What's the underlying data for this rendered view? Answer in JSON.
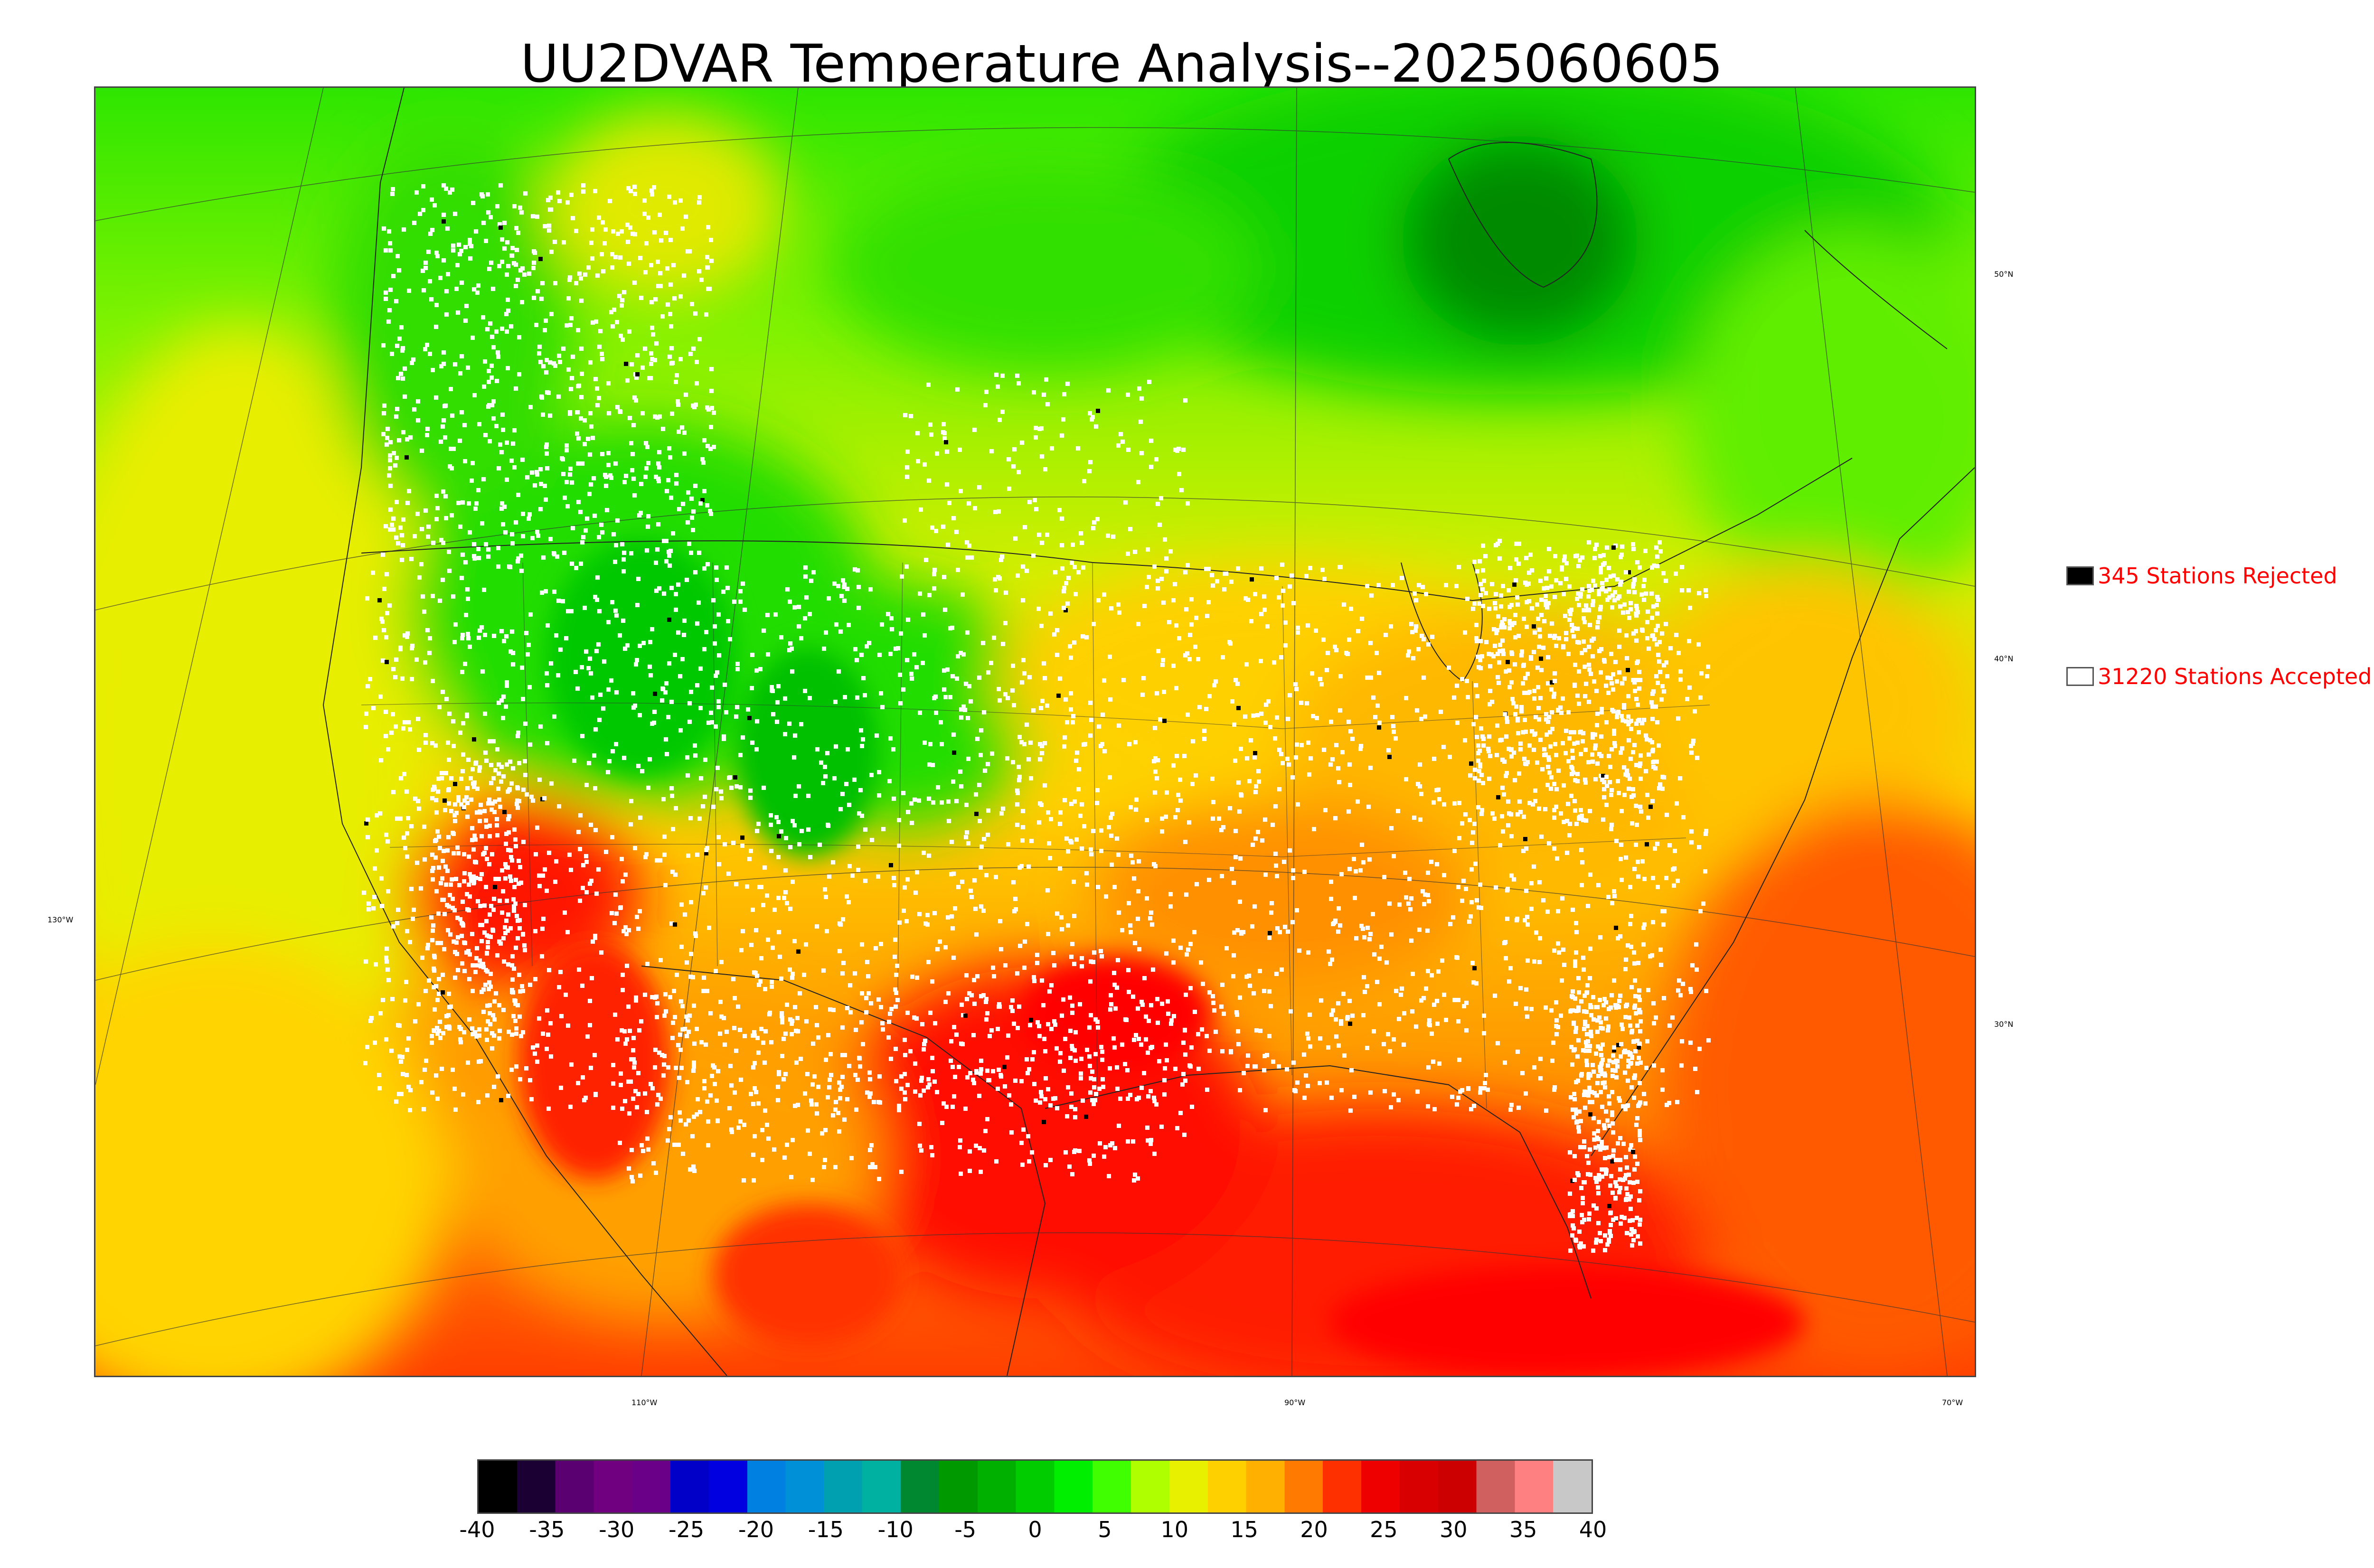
{
  "title": "UU2DVAR Temperature Analysis--2025060605",
  "legend": {
    "rejected": {
      "label": "345 Stations Rejected",
      "swatch_color": "#000000"
    },
    "accepted": {
      "label": "31220 Stations Accepted",
      "swatch_color": "#ffffff"
    }
  },
  "map": {
    "projection": "lambert-conformal",
    "region": "Continental United States with southern Canada, northern Mexico, Gulf of Mexico",
    "lat_labels": [
      "50°N",
      "40°N",
      "30°N"
    ],
    "lon_labels": [
      "130°W",
      "110°W",
      "90°W",
      "70°W"
    ],
    "shading": "temperature",
    "station_markers": {
      "accepted_color": "#ffffff",
      "rejected_color": "#000000"
    }
  },
  "colorbar": {
    "min": -40,
    "max": 40,
    "tick_labels": [
      "-40",
      "-35",
      "-30",
      "-25",
      "-20",
      "-15",
      "-10",
      "-5",
      "0",
      "5",
      "10",
      "15",
      "20",
      "25",
      "30",
      "35",
      "40"
    ],
    "colors": [
      "#000000",
      "#1a0033",
      "#5a0070",
      "#700080",
      "#6a0088",
      "#0000c8",
      "#0000e0",
      "#0080e0",
      "#0090d8",
      "#00a0b0",
      "#00b0a0",
      "#008830",
      "#009a00",
      "#00b000",
      "#00cc00",
      "#00ee00",
      "#40ff00",
      "#b0ff00",
      "#e8f000",
      "#ffd000",
      "#ffb000",
      "#ff7a00",
      "#ff3000",
      "#ee0000",
      "#d80000",
      "#cc0000",
      "#d06060",
      "#ff8080",
      "#c8c8c8"
    ]
  }
}
